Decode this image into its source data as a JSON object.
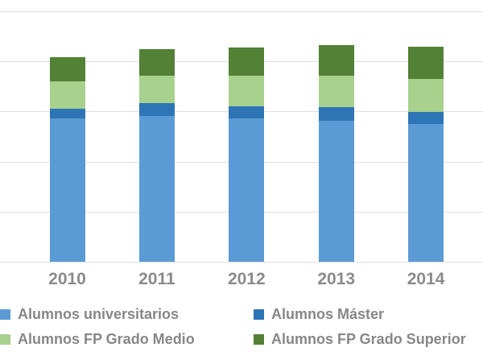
{
  "chart_data": {
    "type": "bar",
    "stacked": true,
    "title": "",
    "xlabel": "",
    "ylabel": "",
    "categories": [
      "2010",
      "2011",
      "2012",
      "2013",
      "2014"
    ],
    "series": [
      {
        "name": "Alumnos universitarios",
        "color": "#5b9bd5",
        "values": [
          1430000,
          1455000,
          1430000,
          1410000,
          1372000
        ]
      },
      {
        "name": "Alumnos Máster",
        "color": "#2e75b6",
        "values": [
          95000,
          125000,
          120000,
          133000,
          125000
        ]
      },
      {
        "name": "Alumnos FP Grado Medio",
        "color": "#a9d18e",
        "values": [
          275000,
          275000,
          305000,
          317000,
          330000
        ]
      },
      {
        "name": "Alumnos FP Grado Superior",
        "color": "#538135",
        "values": [
          243000,
          270000,
          284000,
          304000,
          320000
        ]
      }
    ],
    "ylim": [
      0,
      2500000
    ],
    "gridline_interval": 500000,
    "grid": true,
    "y_axis_labels_visible": false,
    "legend_position": "bottom"
  },
  "styles": {
    "background": "#ffffff",
    "gridline_color": "#e0e0e0",
    "axis_label_color": "#8a8a8a",
    "legend_text_color": "#878787"
  }
}
